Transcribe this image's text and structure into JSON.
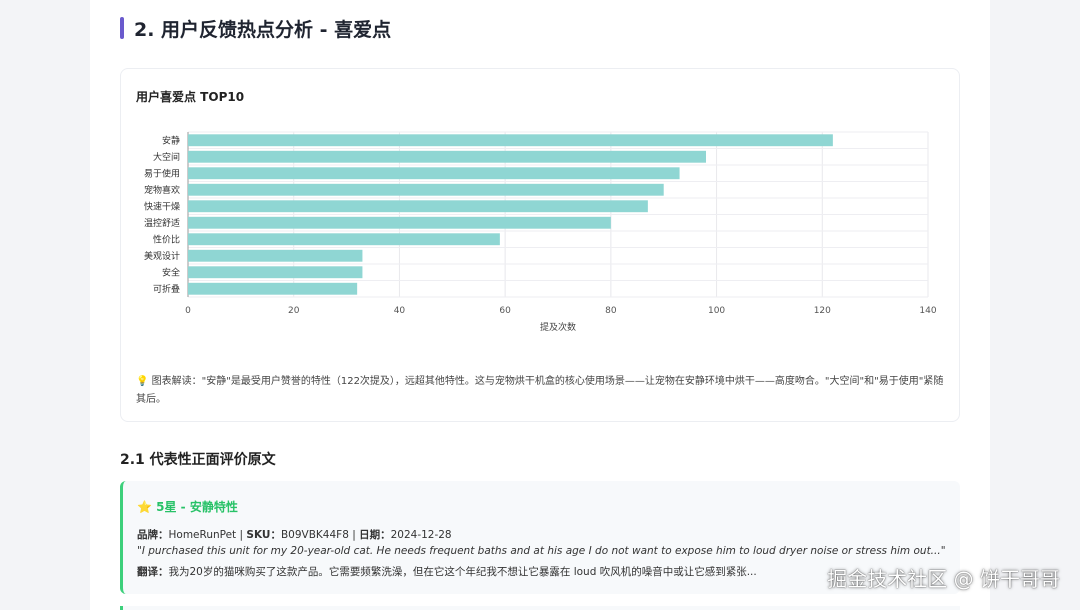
{
  "section": {
    "title": "2. 用户反馈热点分析 - 喜爱点"
  },
  "chart_data": {
    "type": "bar",
    "orientation": "horizontal",
    "title": "用户喜爱点 TOP10",
    "categories": [
      "安静",
      "大空间",
      "易于使用",
      "宠物喜欢",
      "快速干燥",
      "温控舒适",
      "性价比",
      "美观设计",
      "安全",
      "可折叠"
    ],
    "values": [
      122,
      98,
      93,
      90,
      87,
      80,
      59,
      33,
      33,
      32
    ],
    "xlabel": "提及次数",
    "ylabel": "",
    "xlim": [
      0,
      140
    ],
    "xticks": [
      "0",
      "20",
      "40",
      "60",
      "80",
      "100",
      "120",
      "140"
    ],
    "bar_color": "#8fd6d3",
    "grid": true
  },
  "note": {
    "icon": "lightbulb-icon",
    "text": "图表解读：\"安静\"是最受用户赞誉的特性（122次提及），远超其他特性。这与宠物烘干机盒的核心使用场景——让宠物在安静环境中烘干——高度吻合。\"大空间\"和\"易于使用\"紧随其后。"
  },
  "subsection": {
    "title": "2.1 代表性正面评价原文"
  },
  "review": {
    "star_icon": "star-icon",
    "header": "5星 - 安静特性",
    "brand_label": "品牌：",
    "brand": "HomeRunPet",
    "sku_label": "SKU：",
    "sku": "B09VBK44F8",
    "date_label": "日期：",
    "date": "2024-12-28",
    "sep": " | ",
    "quote": "\"I purchased this unit for my 20-year-old cat. He needs frequent baths and at his age I do not want to expose him to loud dryer noise or stress him out...\"",
    "trans_label": "翻译：",
    "translation": "我为20岁的猫咪购买了这款产品。它需要频繁洗澡，但在它这个年纪我不想让它暴露在 loud 吹风机的噪音中或让它感到紧张..."
  },
  "watermark": "掘金技术社区 @ 饼干哥哥",
  "colors": {
    "accent": "#6a5acd",
    "review_border": "#3dd07b",
    "review_header": "#27c267"
  }
}
